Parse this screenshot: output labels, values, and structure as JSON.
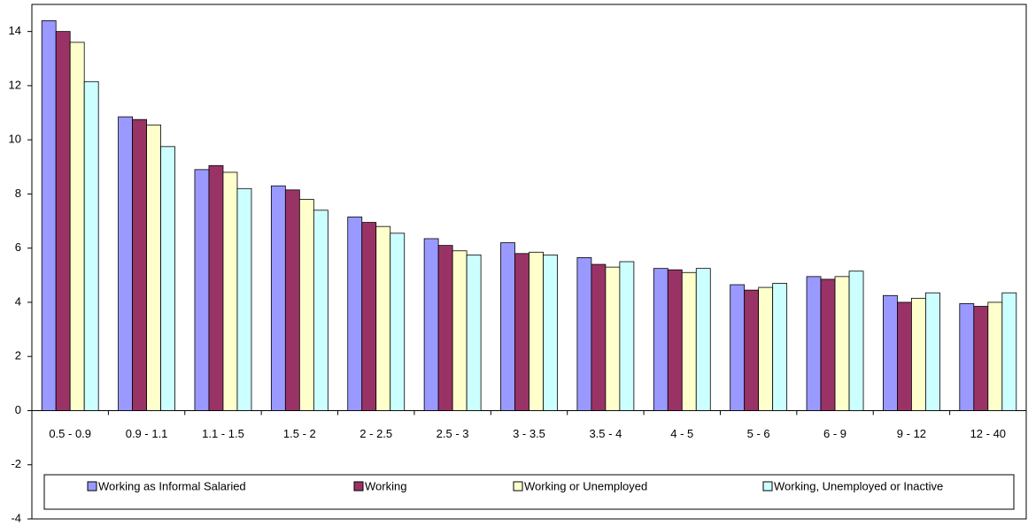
{
  "chart_data": {
    "type": "bar",
    "categories": [
      "0.5 - 0.9",
      "0.9 - 1.1",
      "1.1 - 1.5",
      "1.5 - 2",
      "2 - 2.5",
      "2.5 - 3",
      "3 - 3.5",
      "3.5 - 4",
      "4 - 5",
      "5 - 6",
      "6 - 9",
      "9 - 12",
      "12 - 40"
    ],
    "series": [
      {
        "name": "Working as Informal Salaried",
        "color": "#9999ff",
        "values": [
          14.4,
          10.85,
          8.9,
          8.3,
          7.15,
          6.35,
          6.2,
          5.65,
          5.25,
          4.65,
          4.95,
          4.25,
          3.95
        ]
      },
      {
        "name": "Working",
        "color": "#993366",
        "values": [
          14.0,
          10.75,
          9.05,
          8.15,
          6.95,
          6.1,
          5.8,
          5.4,
          5.2,
          4.45,
          4.85,
          4.0,
          3.85
        ]
      },
      {
        "name": "Working or Unemployed",
        "color": "#ffffcc",
        "values": [
          13.6,
          10.55,
          8.8,
          7.8,
          6.8,
          5.9,
          5.85,
          5.3,
          5.1,
          4.55,
          4.95,
          4.15,
          4.0
        ]
      },
      {
        "name": "Working, Unemployed or Inactive",
        "color": "#ccffff",
        "values": [
          12.15,
          9.75,
          8.2,
          7.4,
          6.55,
          5.75,
          5.75,
          5.5,
          5.25,
          4.7,
          5.15,
          4.35,
          4.35
        ]
      }
    ],
    "ylim": [
      -4,
      15
    ],
    "yticks": [
      -4,
      -2,
      0,
      2,
      4,
      6,
      8,
      10,
      12,
      14
    ],
    "grid": false
  }
}
